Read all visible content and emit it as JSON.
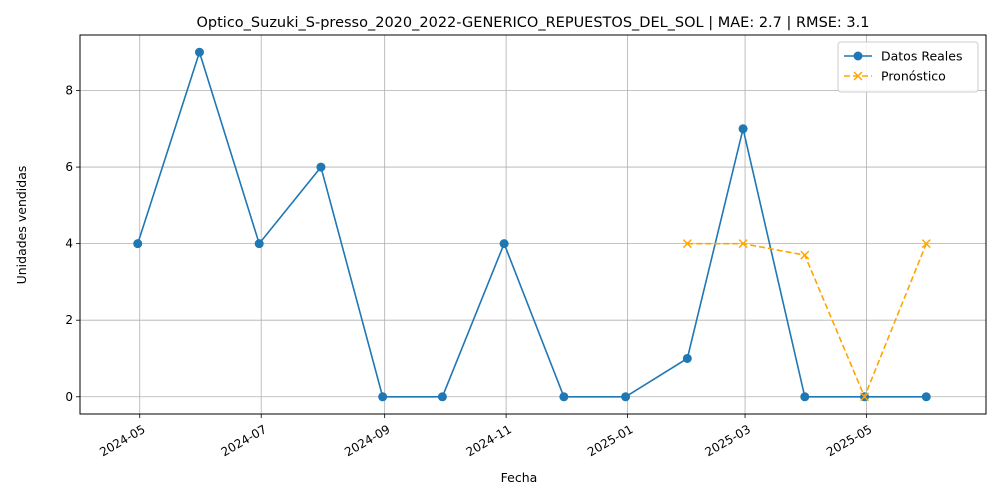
{
  "chart_data": {
    "type": "line",
    "title": "Optico_Suzuki_S-presso_2020_2022-GENERICO_REPUESTOS_DEL_SOL | MAE: 2.7 | RMSE: 3.1",
    "xlabel": "Fecha",
    "ylabel": "Unidades vendidas",
    "x_ticks": [
      "2024-05",
      "2024-07",
      "2024-09",
      "2024-11",
      "2025-01",
      "2025-03",
      "2025-05"
    ],
    "y_ticks": [
      0,
      2,
      4,
      6,
      8
    ],
    "ylim": [
      -0.45,
      9.45
    ],
    "grid": true,
    "legend_position": "top-right",
    "series": [
      {
        "name": "Datos Reales",
        "color": "#1f77b4",
        "marker": "circle",
        "linestyle": "solid",
        "x": [
          "2024-04-30",
          "2024-05-31",
          "2024-06-30",
          "2024-07-31",
          "2024-08-31",
          "2024-09-30",
          "2024-10-31",
          "2024-11-30",
          "2024-12-31",
          "2025-01-31",
          "2025-02-28",
          "2025-03-31",
          "2025-04-30",
          "2025-05-31"
        ],
        "values": [
          4,
          9,
          4,
          6,
          0,
          0,
          4,
          0,
          0,
          1,
          7,
          0,
          0,
          0
        ]
      },
      {
        "name": "Pronóstico",
        "color": "#ffa500",
        "marker": "x",
        "linestyle": "dashed",
        "x": [
          "2025-01-31",
          "2025-02-28",
          "2025-03-31",
          "2025-04-30",
          "2025-05-31"
        ],
        "values": [
          4,
          4,
          3.7,
          0,
          4
        ]
      }
    ]
  }
}
